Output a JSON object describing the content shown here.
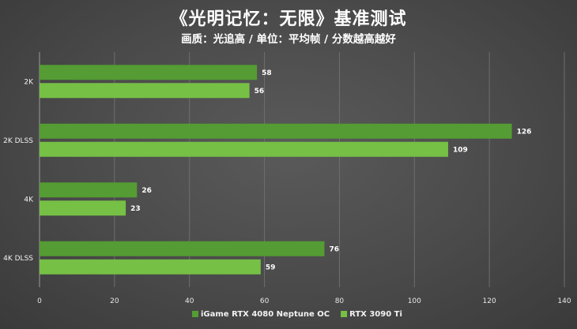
{
  "chart_data": {
    "type": "bar",
    "orientation": "horizontal",
    "title": "《光明记忆：无限》基准测试",
    "subtitle": "画质：光追高 / 单位：平均帧 / 分数越高越好",
    "categories": [
      "2K",
      "2K DLSS",
      "4K",
      "4K DLSS"
    ],
    "series": [
      {
        "name": "iGame RTX 4080 Neptune OC",
        "values": [
          58,
          126,
          26,
          76
        ],
        "color": "#549c33"
      },
      {
        "name": "RTX 3090 Ti",
        "values": [
          56,
          109,
          23,
          59
        ],
        "color": "#76c045"
      }
    ],
    "xlim": [
      0,
      140
    ],
    "xticks": [
      0,
      20,
      40,
      60,
      80,
      100,
      120,
      140
    ],
    "grid": true,
    "legend_position": "bottom-center"
  }
}
